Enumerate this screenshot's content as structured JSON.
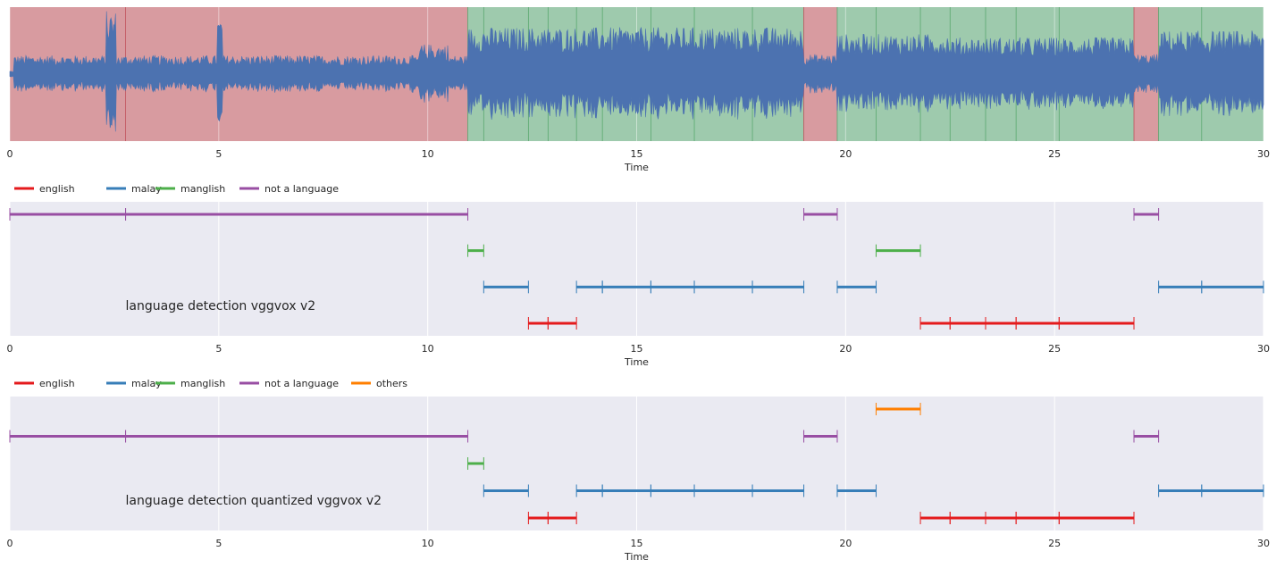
{
  "chart_data": [
    {
      "type": "waveform",
      "title": "",
      "xlabel": "Time",
      "ylabel": "",
      "xlim": [
        0,
        30
      ],
      "xticks": [
        0,
        5,
        10,
        15,
        20,
        25,
        30
      ],
      "background_segments": [
        {
          "start": 0.0,
          "end": 2.77,
          "class": "not a language"
        },
        {
          "start": 2.77,
          "end": 10.96,
          "class": "not a language"
        },
        {
          "start": 10.96,
          "end": 11.34,
          "class": "manglish"
        },
        {
          "start": 11.34,
          "end": 12.41,
          "class": "malay"
        },
        {
          "start": 12.41,
          "end": 12.88,
          "class": "english"
        },
        {
          "start": 12.88,
          "end": 13.56,
          "class": "english"
        },
        {
          "start": 13.56,
          "end": 14.18,
          "class": "malay"
        },
        {
          "start": 14.18,
          "end": 15.34,
          "class": "malay"
        },
        {
          "start": 15.34,
          "end": 16.38,
          "class": "malay"
        },
        {
          "start": 16.38,
          "end": 17.77,
          "class": "malay"
        },
        {
          "start": 17.77,
          "end": 19.0,
          "class": "malay"
        },
        {
          "start": 19.0,
          "end": 19.8,
          "class": "not a language"
        },
        {
          "start": 19.8,
          "end": 20.73,
          "class": "malay"
        },
        {
          "start": 20.73,
          "end": 21.79,
          "class": "manglish"
        },
        {
          "start": 21.79,
          "end": 22.5,
          "class": "english"
        },
        {
          "start": 22.5,
          "end": 23.35,
          "class": "english"
        },
        {
          "start": 23.35,
          "end": 24.08,
          "class": "english"
        },
        {
          "start": 24.08,
          "end": 25.11,
          "class": "english"
        },
        {
          "start": 25.11,
          "end": 26.9,
          "class": "english"
        },
        {
          "start": 26.9,
          "end": 27.49,
          "class": "not a language"
        },
        {
          "start": 27.49,
          "end": 28.52,
          "class": "malay"
        },
        {
          "start": 28.52,
          "end": 30.0,
          "class": "malay"
        }
      ],
      "shade_colors": {
        "speech": "#9ecaad",
        "non_speech": "#d89ba0"
      },
      "wave_color": "#4c72b0"
    },
    {
      "type": "segments",
      "title": "language detection vggvox v2",
      "xlabel": "Time",
      "xlim": [
        0,
        30
      ],
      "xticks": [
        0,
        5,
        10,
        15,
        20,
        25,
        30
      ],
      "legend": {
        "placement": "top-left, outside",
        "entries": [
          {
            "name": "english",
            "color": "#e41a1c"
          },
          {
            "name": "malay",
            "color": "#377eb8"
          },
          {
            "name": "manglish",
            "color": "#4daf4a"
          },
          {
            "name": "not a language",
            "color": "#984ea3"
          }
        ]
      },
      "rows": [
        "not a language",
        "manglish",
        "malay",
        "english"
      ],
      "segments": [
        {
          "label": "not a language",
          "start": 0.0,
          "end": 2.77
        },
        {
          "label": "not a language",
          "start": 2.77,
          "end": 10.96
        },
        {
          "label": "not a language",
          "start": 19.0,
          "end": 19.8
        },
        {
          "label": "not a language",
          "start": 26.9,
          "end": 27.49
        },
        {
          "label": "manglish",
          "start": 10.96,
          "end": 11.34
        },
        {
          "label": "manglish",
          "start": 20.73,
          "end": 21.79
        },
        {
          "label": "malay",
          "start": 11.34,
          "end": 12.41
        },
        {
          "label": "malay",
          "start": 13.56,
          "end": 14.18
        },
        {
          "label": "malay",
          "start": 14.18,
          "end": 15.34
        },
        {
          "label": "malay",
          "start": 15.34,
          "end": 16.38
        },
        {
          "label": "malay",
          "start": 16.38,
          "end": 17.77
        },
        {
          "label": "malay",
          "start": 17.77,
          "end": 19.0
        },
        {
          "label": "malay",
          "start": 19.8,
          "end": 20.73
        },
        {
          "label": "malay",
          "start": 27.49,
          "end": 28.52
        },
        {
          "label": "malay",
          "start": 28.52,
          "end": 30.0
        },
        {
          "label": "english",
          "start": 12.41,
          "end": 12.88
        },
        {
          "label": "english",
          "start": 12.88,
          "end": 13.56
        },
        {
          "label": "english",
          "start": 21.79,
          "end": 22.5
        },
        {
          "label": "english",
          "start": 22.5,
          "end": 23.35
        },
        {
          "label": "english",
          "start": 23.35,
          "end": 24.08
        },
        {
          "label": "english",
          "start": 24.08,
          "end": 25.11
        },
        {
          "label": "english",
          "start": 25.11,
          "end": 26.9
        }
      ]
    },
    {
      "type": "segments",
      "title": "language detection quantized vggvox v2",
      "xlabel": "Time",
      "xlim": [
        0,
        30
      ],
      "xticks": [
        0,
        5,
        10,
        15,
        20,
        25,
        30
      ],
      "legend": {
        "placement": "top-left, outside",
        "entries": [
          {
            "name": "english",
            "color": "#e41a1c"
          },
          {
            "name": "malay",
            "color": "#377eb8"
          },
          {
            "name": "manglish",
            "color": "#4daf4a"
          },
          {
            "name": "not a language",
            "color": "#984ea3"
          },
          {
            "name": "others",
            "color": "#ff7f00"
          }
        ]
      },
      "rows": [
        "others",
        "not a language",
        "manglish",
        "malay",
        "english"
      ],
      "segments": [
        {
          "label": "others",
          "start": 20.73,
          "end": 21.79
        },
        {
          "label": "not a language",
          "start": 0.0,
          "end": 2.77
        },
        {
          "label": "not a language",
          "start": 2.77,
          "end": 10.96
        },
        {
          "label": "not a language",
          "start": 19.0,
          "end": 19.8
        },
        {
          "label": "not a language",
          "start": 26.9,
          "end": 27.49
        },
        {
          "label": "manglish",
          "start": 10.96,
          "end": 11.34
        },
        {
          "label": "malay",
          "start": 11.34,
          "end": 12.41
        },
        {
          "label": "malay",
          "start": 13.56,
          "end": 14.18
        },
        {
          "label": "malay",
          "start": 14.18,
          "end": 15.34
        },
        {
          "label": "malay",
          "start": 15.34,
          "end": 16.38
        },
        {
          "label": "malay",
          "start": 16.38,
          "end": 17.77
        },
        {
          "label": "malay",
          "start": 17.77,
          "end": 19.0
        },
        {
          "label": "malay",
          "start": 19.8,
          "end": 20.73
        },
        {
          "label": "malay",
          "start": 27.49,
          "end": 28.52
        },
        {
          "label": "malay",
          "start": 28.52,
          "end": 30.0
        },
        {
          "label": "english",
          "start": 12.41,
          "end": 12.88
        },
        {
          "label": "english",
          "start": 12.88,
          "end": 13.56
        },
        {
          "label": "english",
          "start": 21.79,
          "end": 22.5
        },
        {
          "label": "english",
          "start": 22.5,
          "end": 23.35
        },
        {
          "label": "english",
          "start": 23.35,
          "end": 24.08
        },
        {
          "label": "english",
          "start": 24.08,
          "end": 25.11
        },
        {
          "label": "english",
          "start": 25.11,
          "end": 26.9
        }
      ]
    }
  ]
}
